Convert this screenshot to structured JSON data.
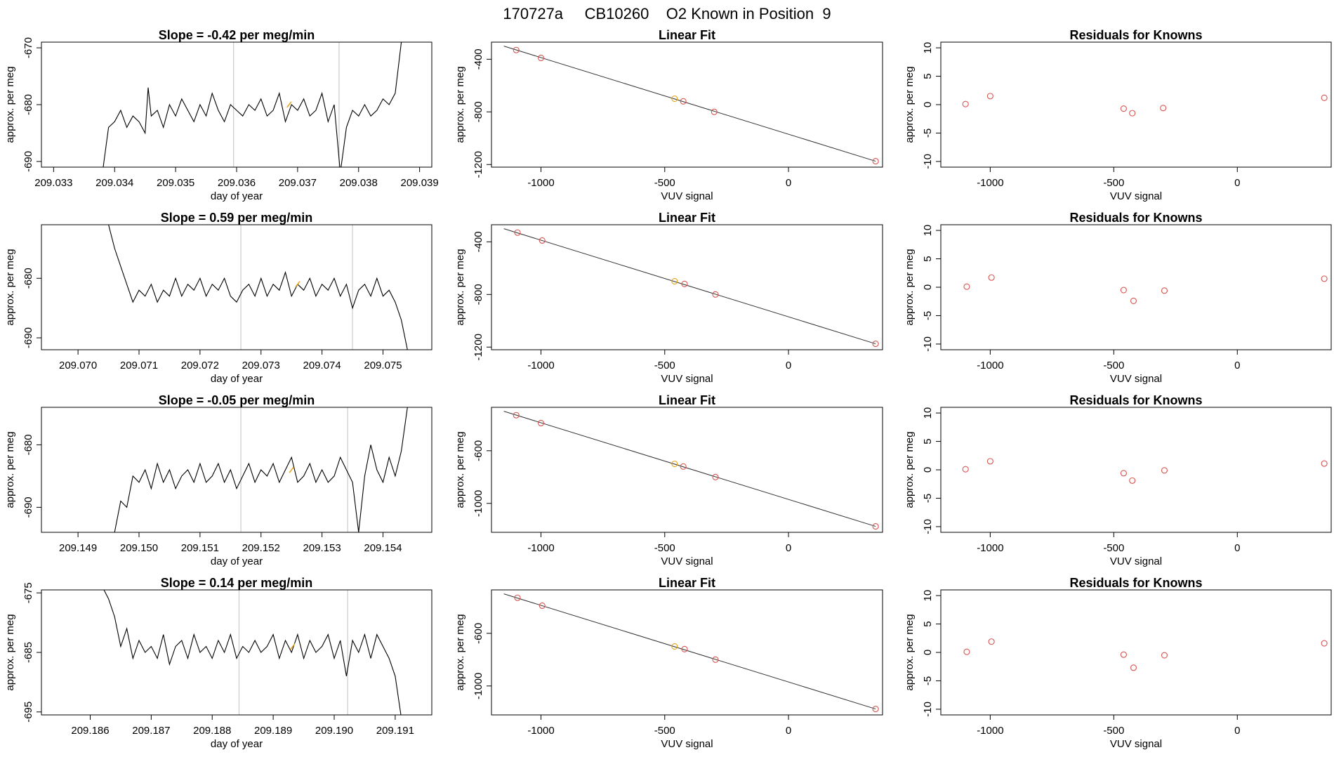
{
  "figure": {
    "title": "170727a     CB10260    O2 Known in Position  9"
  },
  "chart_data": [
    {
      "type": "line",
      "panel": "timeseries",
      "row": 1,
      "title": "Slope =  -0.42  per meg/min",
      "xlabel": "day of year",
      "ylabel": "approx. per meg",
      "xlim": [
        209.0328,
        209.0392
      ],
      "ylim": [
        -691,
        -669
      ],
      "xticks": [
        209.033,
        209.034,
        209.035,
        209.036,
        209.037,
        209.038,
        209.039
      ],
      "xtick_labels": [
        "209.033",
        "209.034",
        "209.035",
        "209.036",
        "209.037",
        "209.038",
        "209.039"
      ],
      "yticks": [
        -670,
        -680,
        -690
      ],
      "ytick_labels": [
        "-670",
        "-680",
        "-690"
      ],
      "vlines": [
        209.03595,
        209.03768
      ],
      "series_x": [
        209.0338,
        209.0339,
        209.034,
        209.0341,
        209.0342,
        209.0343,
        209.0344,
        209.0345,
        209.03455,
        209.0346,
        209.0347,
        209.0348,
        209.0349,
        209.035,
        209.0351,
        209.0352,
        209.0353,
        209.0354,
        209.0355,
        209.0356,
        209.0357,
        209.0358,
        209.0359,
        209.036,
        209.0361,
        209.0362,
        209.0363,
        209.0364,
        209.0365,
        209.0366,
        209.0367,
        209.0368,
        209.0369,
        209.037,
        209.0371,
        209.0372,
        209.0373,
        209.0374,
        209.0375,
        209.0376,
        209.0377,
        209.0378,
        209.0379,
        209.038,
        209.0381,
        209.0382,
        209.0383,
        209.0384,
        209.0385,
        209.0386,
        209.0387
      ],
      "series_y": [
        -692,
        -684,
        -683,
        -681,
        -684,
        -682,
        -683,
        -685,
        -677,
        -682,
        -681,
        -684,
        -680,
        -682,
        -679,
        -681,
        -683,
        -680,
        -682,
        -678,
        -681,
        -683,
        -680,
        -681,
        -682,
        -680,
        -681,
        -679,
        -682,
        -681,
        -678,
        -683,
        -680,
        -681,
        -679,
        -682,
        -681,
        -678,
        -683,
        -680,
        -692,
        -684,
        -681,
        -682,
        -680,
        -682,
        -681,
        -679,
        -680,
        -678,
        -669
      ],
      "highlight": {
        "x": 209.03686,
        "y": -680
      }
    },
    {
      "type": "scatter",
      "panel": "linear-fit",
      "row": 1,
      "title": "Linear Fit",
      "xlabel": "VUV signal",
      "ylabel": "approx. per meg",
      "xlim": [
        -1200,
        380
      ],
      "ylim": [
        -1220,
        -270
      ],
      "xticks": [
        -1000,
        -500,
        0
      ],
      "xtick_labels": [
        "-1000",
        "-500",
        "0"
      ],
      "yticks": [
        -400,
        -800,
        -1200
      ],
      "ytick_labels": [
        "-400",
        "-800",
        "-1200"
      ],
      "x": [
        -1100,
        -1000,
        -460,
        -425,
        -300,
        352
      ],
      "y": [
        -330,
        -390,
        -700,
        -720,
        -800,
        -1175
      ],
      "highlight_index": 2,
      "fit_line": {
        "x": [
          -1150,
          352
        ],
        "y": [
          -300,
          -1175
        ]
      }
    },
    {
      "type": "scatter",
      "panel": "residuals",
      "row": 1,
      "title": "Residuals for Knowns",
      "xlabel": "VUV signal",
      "ylabel": "approx. per meg",
      "xlim": [
        -1200,
        380
      ],
      "ylim": [
        -11,
        11
      ],
      "xticks": [
        -1000,
        -500,
        0
      ],
      "xtick_labels": [
        "-1000",
        "-500",
        "0"
      ],
      "yticks": [
        10,
        5,
        0,
        -5,
        -10
      ],
      "ytick_labels": [
        "10",
        "5",
        "0",
        "-5",
        "-10"
      ],
      "x": [
        -1100,
        -1000,
        -460,
        -425,
        -300,
        352
      ],
      "y": [
        0.1,
        1.5,
        -0.7,
        -1.5,
        -0.6,
        1.2
      ]
    },
    {
      "type": "line",
      "panel": "timeseries",
      "row": 2,
      "title": "Slope =  0.59  per meg/min",
      "xlabel": "day of year",
      "ylabel": "approx. per meg",
      "xlim": [
        209.0694,
        209.0758
      ],
      "ylim": [
        -692,
        -671
      ],
      "xticks": [
        209.07,
        209.071,
        209.072,
        209.073,
        209.074,
        209.075
      ],
      "xtick_labels": [
        "209.070",
        "209.071",
        "209.072",
        "209.073",
        "209.074",
        "209.075"
      ],
      "yticks": [
        -680,
        -690
      ],
      "ytick_labels": [
        "-680",
        "-690"
      ],
      "vlines": [
        209.07267,
        209.0745
      ],
      "series_x": [
        209.0705,
        209.0706,
        209.0707,
        209.0708,
        209.0709,
        209.071,
        209.0711,
        209.0712,
        209.0713,
        209.0714,
        209.0715,
        209.0716,
        209.0717,
        209.0718,
        209.0719,
        209.072,
        209.0721,
        209.0722,
        209.0723,
        209.0724,
        209.0725,
        209.0726,
        209.0727,
        209.0728,
        209.0729,
        209.073,
        209.0731,
        209.0732,
        209.0733,
        209.0734,
        209.0735,
        209.0736,
        209.0737,
        209.0738,
        209.0739,
        209.074,
        209.0741,
        209.0742,
        209.0743,
        209.0744,
        209.0745,
        209.0746,
        209.0747,
        209.0748,
        209.0749,
        209.075,
        209.0751,
        209.0752,
        209.0753,
        209.0754
      ],
      "series_y": [
        -671,
        -675,
        -678,
        -681,
        -684,
        -682,
        -683,
        -681,
        -684,
        -682,
        -683,
        -680,
        -683,
        -681,
        -682,
        -680,
        -683,
        -681,
        -682,
        -680,
        -683,
        -684,
        -682,
        -681,
        -683,
        -680,
        -683,
        -681,
        -682,
        -679,
        -683,
        -681,
        -682,
        -680,
        -683,
        -681,
        -682,
        -680,
        -683,
        -681,
        -685,
        -682,
        -681,
        -683,
        -680,
        -683,
        -682,
        -684,
        -687,
        -692
      ],
      "highlight": {
        "x": 209.0736,
        "y": -681
      }
    },
    {
      "type": "scatter",
      "panel": "linear-fit",
      "row": 2,
      "title": "Linear Fit",
      "xlabel": "VUV signal",
      "ylabel": "approx. per meg",
      "xlim": [
        -1200,
        380
      ],
      "ylim": [
        -1220,
        -270
      ],
      "xticks": [
        -1000,
        -500,
        0
      ],
      "xtick_labels": [
        "-1000",
        "-500",
        "0"
      ],
      "yticks": [
        -400,
        -800,
        -1200
      ],
      "ytick_labels": [
        "-400",
        "-800",
        "-1200"
      ],
      "x": [
        -1095,
        -995,
        -460,
        -420,
        -295,
        352
      ],
      "y": [
        -330,
        -390,
        -700,
        -720,
        -800,
        -1175
      ],
      "highlight_index": 2,
      "fit_line": {
        "x": [
          -1150,
          352
        ],
        "y": [
          -300,
          -1175
        ]
      }
    },
    {
      "type": "scatter",
      "panel": "residuals",
      "row": 2,
      "title": "Residuals for Knowns",
      "xlabel": "VUV signal",
      "ylabel": "approx. per meg",
      "xlim": [
        -1200,
        380
      ],
      "ylim": [
        -11,
        11
      ],
      "xticks": [
        -1000,
        -500,
        0
      ],
      "xtick_labels": [
        "-1000",
        "-500",
        "0"
      ],
      "yticks": [
        10,
        5,
        0,
        -5,
        -10
      ],
      "ytick_labels": [
        "10",
        "5",
        "0",
        "-5",
        "-10"
      ],
      "x": [
        -1095,
        -995,
        -460,
        -420,
        -295,
        352
      ],
      "y": [
        0.1,
        1.7,
        -0.5,
        -2.4,
        -0.6,
        1.5
      ]
    },
    {
      "type": "line",
      "panel": "timeseries",
      "row": 3,
      "title": "Slope =  -0.05  per meg/min",
      "xlabel": "day of year",
      "ylabel": "approx. per meg",
      "xlim": [
        209.1484,
        209.1548
      ],
      "ylim": [
        -694,
        -674
      ],
      "xticks": [
        209.149,
        209.15,
        209.151,
        209.152,
        209.153,
        209.154
      ],
      "xtick_labels": [
        "209.149",
        "209.150",
        "209.151",
        "209.152",
        "209.153",
        "209.154"
      ],
      "yticks": [
        -680,
        -690
      ],
      "ytick_labels": [
        "-680",
        "-690"
      ],
      "vlines": [
        209.15167,
        209.15342
      ],
      "series_x": [
        209.1496,
        209.1497,
        209.1498,
        209.1499,
        209.15,
        209.1501,
        209.1502,
        209.1503,
        209.1504,
        209.1505,
        209.1506,
        209.1507,
        209.1508,
        209.1509,
        209.151,
        209.1511,
        209.1512,
        209.1513,
        209.1514,
        209.1515,
        209.1516,
        209.1517,
        209.1518,
        209.1519,
        209.152,
        209.1521,
        209.1522,
        209.1523,
        209.1524,
        209.1525,
        209.1526,
        209.1527,
        209.1528,
        209.1529,
        209.153,
        209.1531,
        209.1532,
        209.1533,
        209.1534,
        209.1535,
        209.1536,
        209.1537,
        209.1538,
        209.1539,
        209.154,
        209.1541,
        209.1542,
        209.1543,
        209.1544
      ],
      "series_y": [
        -694,
        -689,
        -690,
        -685,
        -686,
        -684,
        -687,
        -683,
        -686,
        -684,
        -687,
        -685,
        -684,
        -686,
        -683,
        -686,
        -685,
        -683,
        -686,
        -684,
        -687,
        -685,
        -683,
        -686,
        -684,
        -685,
        -683,
        -686,
        -684,
        -682,
        -686,
        -685,
        -683,
        -686,
        -684,
        -686,
        -685,
        -682,
        -684,
        -686,
        -694,
        -685,
        -680,
        -684,
        -686,
        -682,
        -685,
        -681,
        -674
      ],
      "highlight": {
        "x": 209.1525,
        "y": -684
      }
    },
    {
      "type": "scatter",
      "panel": "linear-fit",
      "row": 3,
      "title": "Linear Fit",
      "xlabel": "VUV signal",
      "ylabel": "approx. per meg",
      "xlim": [
        -1200,
        380
      ],
      "ylim": [
        -1220,
        -270
      ],
      "xticks": [
        -1000,
        -500,
        0
      ],
      "xtick_labels": [
        "-1000",
        "-500",
        "0"
      ],
      "yticks": [
        -600,
        -1000
      ],
      "ytick_labels": [
        "-600",
        "-1000"
      ],
      "x": [
        -1100,
        -1000,
        -460,
        -425,
        -295,
        352
      ],
      "y": [
        -330,
        -390,
        -700,
        -720,
        -800,
        -1175
      ],
      "highlight_index": 2,
      "fit_line": {
        "x": [
          -1150,
          352
        ],
        "y": [
          -300,
          -1175
        ]
      }
    },
    {
      "type": "scatter",
      "panel": "residuals",
      "row": 3,
      "title": "Residuals for Knowns",
      "xlabel": "VUV signal",
      "ylabel": "approx. per meg",
      "xlim": [
        -1200,
        380
      ],
      "ylim": [
        -11,
        11
      ],
      "xticks": [
        -1000,
        -500,
        0
      ],
      "xtick_labels": [
        "-1000",
        "-500",
        "0"
      ],
      "yticks": [
        10,
        5,
        0,
        -5,
        -10
      ],
      "ytick_labels": [
        "10",
        "5",
        "0",
        "-5",
        "-10"
      ],
      "x": [
        -1100,
        -1000,
        -460,
        -425,
        -295,
        352
      ],
      "y": [
        0.1,
        1.5,
        -0.6,
        -1.9,
        -0.1,
        1.1
      ]
    },
    {
      "type": "line",
      "panel": "timeseries",
      "row": 4,
      "title": "Slope =  0.14  per meg/min",
      "xlabel": "day of year",
      "ylabel": "approx. per meg",
      "xlim": [
        209.1852,
        209.1916
      ],
      "ylim": [
        -695.5,
        -674.5
      ],
      "xticks": [
        209.186,
        209.187,
        209.188,
        209.189,
        209.19,
        209.191
      ],
      "xtick_labels": [
        "209.186",
        "209.187",
        "209.188",
        "209.189",
        "209.190",
        "209.191"
      ],
      "yticks": [
        -675,
        -685,
        -695
      ],
      "ytick_labels": [
        "-675",
        "-685",
        "-695"
      ],
      "vlines": [
        209.18844,
        209.19022
      ],
      "series_x": [
        209.1862,
        209.1863,
        209.1864,
        209.1865,
        209.1866,
        209.1867,
        209.1868,
        209.1869,
        209.187,
        209.1871,
        209.1872,
        209.1873,
        209.1874,
        209.1875,
        209.1876,
        209.1877,
        209.1878,
        209.1879,
        209.188,
        209.1881,
        209.1882,
        209.1883,
        209.1884,
        209.1885,
        209.1886,
        209.1887,
        209.1888,
        209.1889,
        209.189,
        209.1891,
        209.1892,
        209.1893,
        209.1894,
        209.1895,
        209.1896,
        209.1897,
        209.1898,
        209.1899,
        209.19,
        209.1901,
        209.1902,
        209.1903,
        209.1904,
        209.1905,
        209.1906,
        209.1907,
        209.1908,
        209.1909,
        209.191,
        209.1911
      ],
      "series_y": [
        -674,
        -676,
        -679,
        -684,
        -681,
        -686,
        -683,
        -685,
        -684,
        -686,
        -682,
        -687,
        -684,
        -683,
        -686,
        -682,
        -685,
        -684,
        -686,
        -683,
        -685,
        -682,
        -686,
        -684,
        -685,
        -683,
        -685,
        -684,
        -682,
        -686,
        -683,
        -685,
        -682,
        -686,
        -683,
        -685,
        -684,
        -682,
        -686,
        -683,
        -689,
        -683,
        -685,
        -682,
        -686,
        -682,
        -684,
        -686,
        -689,
        -696
      ],
      "highlight": {
        "x": 209.18932,
        "y": -684
      }
    },
    {
      "type": "scatter",
      "panel": "linear-fit",
      "row": 4,
      "title": "Linear Fit",
      "xlabel": "VUV signal",
      "ylabel": "approx. per meg",
      "xlim": [
        -1200,
        380
      ],
      "ylim": [
        -1220,
        -270
      ],
      "xticks": [
        -1000,
        -500,
        0
      ],
      "xtick_labels": [
        "-1000",
        "-500",
        "0"
      ],
      "yticks": [
        -600,
        -1000
      ],
      "ytick_labels": [
        "-600",
        "-1000"
      ],
      "x": [
        -1095,
        -995,
        -460,
        -420,
        -295,
        352
      ],
      "y": [
        -330,
        -390,
        -700,
        -720,
        -800,
        -1175
      ],
      "highlight_index": 2,
      "fit_line": {
        "x": [
          -1150,
          352
        ],
        "y": [
          -300,
          -1175
        ]
      }
    },
    {
      "type": "scatter",
      "panel": "residuals",
      "row": 4,
      "title": "Residuals for Knowns",
      "xlabel": "VUV signal",
      "ylabel": "approx. per meg",
      "xlim": [
        -1200,
        380
      ],
      "ylim": [
        -11,
        11
      ],
      "xticks": [
        -1000,
        -500,
        0
      ],
      "xtick_labels": [
        "-1000",
        "-500",
        "0"
      ],
      "yticks": [
        10,
        5,
        0,
        -5,
        -10
      ],
      "ytick_labels": [
        "10",
        "5",
        "0",
        "-5",
        "-10"
      ],
      "x": [
        -1095,
        -995,
        -460,
        -420,
        -295,
        352
      ],
      "y": [
        0.1,
        1.9,
        -0.4,
        -2.7,
        -0.5,
        1.6
      ]
    }
  ],
  "colors": {
    "line": "#000000",
    "marker": "#d9534f",
    "highlight": "#e8a317",
    "vline": "#cccccc",
    "fit": "#333333",
    "frame": "#000000"
  }
}
